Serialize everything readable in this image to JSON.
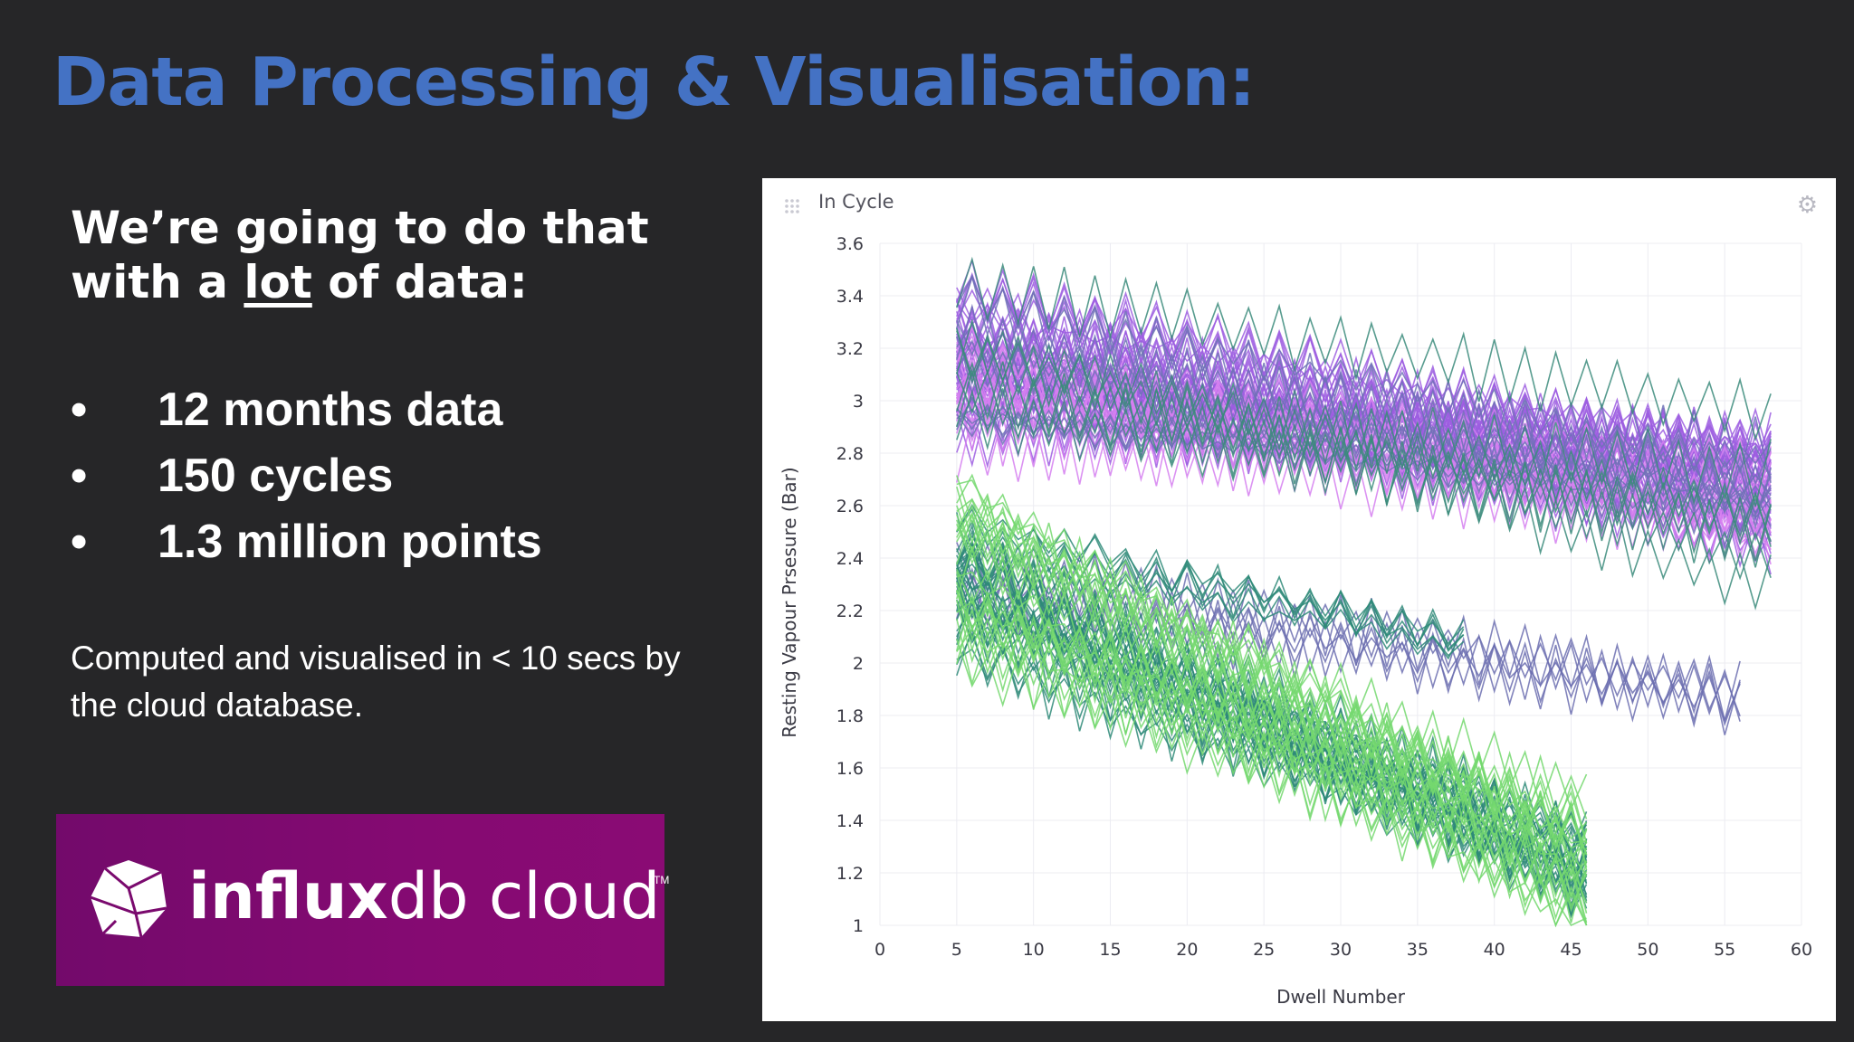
{
  "slide": {
    "title": "Data Processing & Visualisation:",
    "intro_line1": "We’re going to do that",
    "intro_line2_pre": "with a ",
    "intro_line2_u": "lot",
    "intro_line2_post": " of data:",
    "bullet_symbol": "•",
    "bullets": [
      "12 months data",
      "150 cycles",
      "1.3 million points"
    ],
    "note": "Computed and visualised in < 10 secs by the cloud database."
  },
  "logo": {
    "brand_bold": "influx",
    "brand_light": "db cloud",
    "trademark": "TM",
    "background": "#7a0a6e"
  },
  "chart_data": {
    "type": "line",
    "title": "In Cycle",
    "xlabel": "Dwell Number",
    "ylabel": "Resting Vapour Prsesure (Bar)",
    "xlim": [
      0,
      60
    ],
    "ylim": [
      1,
      3.6
    ],
    "x_ticks": [
      0,
      5,
      10,
      15,
      20,
      25,
      30,
      35,
      40,
      45,
      50,
      55,
      60
    ],
    "y_ticks": [
      1,
      1.2,
      1.4,
      1.6,
      1.8,
      2,
      2.2,
      2.4,
      2.6,
      2.8,
      3,
      3.2,
      3.4,
      3.6
    ],
    "y_tick_labels": [
      "1",
      "1.2",
      "1.4",
      "1.6",
      "1.8",
      "2",
      "2.2",
      "2.4",
      "2.6",
      "2.8",
      "3",
      "3.2",
      "3.4",
      "3.6"
    ],
    "grid": true,
    "legend": "none",
    "series_count": 150,
    "groups": [
      {
        "color": "#9c5de0",
        "start_x": 5,
        "end_x": 58,
        "y_start": [
          2.85,
          3.45
        ],
        "y_end": [
          2.45,
          2.85
        ],
        "count": 40
      },
      {
        "color": "#d57ff0",
        "start_x": 5,
        "end_x": 58,
        "y_start": [
          2.8,
          3.25
        ],
        "y_end": [
          2.45,
          2.75
        ],
        "count": 18
      },
      {
        "color": "#6f72b6",
        "start_x": 5,
        "end_x": 58,
        "y_start": [
          2.9,
          3.4
        ],
        "y_end": [
          2.5,
          2.8
        ],
        "count": 14
      },
      {
        "color": "#3b8b7b",
        "start_x": 5,
        "end_x": 58,
        "y_start": [
          2.9,
          3.45
        ],
        "y_end": [
          2.2,
          3.0
        ],
        "count": 8
      },
      {
        "color": "#6c6fb0",
        "start_x": 5,
        "end_x": 56,
        "y_start": [
          2.2,
          2.5
        ],
        "y_end": [
          1.85,
          1.9
        ],
        "count": 6
      },
      {
        "color": "#2e8a78",
        "start_x": 5,
        "end_x": 38,
        "y_start": [
          2.3,
          2.6
        ],
        "y_end": [
          2.05,
          2.12
        ],
        "count": 6
      },
      {
        "color": "#2e8a78",
        "start_x": 5,
        "end_x": 46,
        "y_start": [
          2.0,
          2.5
        ],
        "y_end": [
          1.1,
          1.35
        ],
        "count": 30
      },
      {
        "color": "#74d86f",
        "start_x": 5,
        "end_x": 46,
        "y_start": [
          2.0,
          2.7
        ],
        "y_end": [
          1.0,
          1.5
        ],
        "count": 28
      }
    ]
  }
}
